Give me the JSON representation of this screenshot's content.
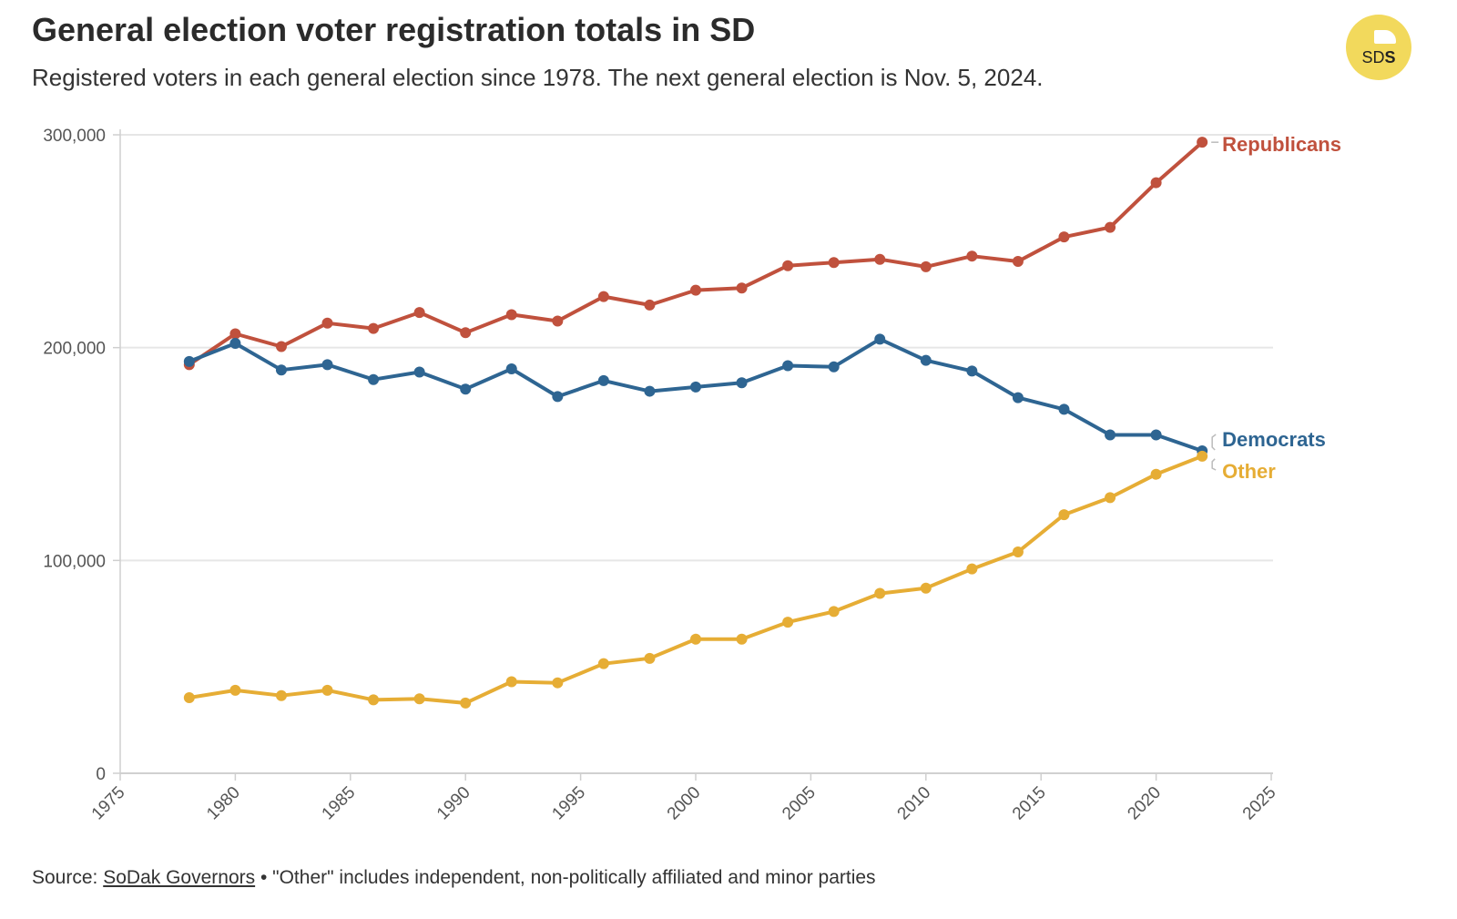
{
  "header": {
    "title": "General election voter registration totals in SD",
    "subtitle": "Registered voters in each general election since 1978. The next general election is Nov. 5, 2024."
  },
  "logo": {
    "prefix": "SD",
    "suffix": "S",
    "color": "#f2d95c"
  },
  "footer": {
    "source_prefix": "Source: ",
    "source_link": "SoDak Governors",
    "note": " • \"Other\" includes independent, non-politically affiliated and minor parties"
  },
  "chart_data": {
    "type": "line",
    "title": "General election voter registration totals in SD",
    "x_ticks": [
      1975,
      1980,
      1985,
      1990,
      1995,
      2000,
      2005,
      2010,
      2015,
      2020,
      2025
    ],
    "y_ticks": [
      0,
      100000,
      200000,
      300000
    ],
    "y_tick_labels": [
      "0",
      "100,000",
      "200,000",
      "300,000"
    ],
    "xlim": [
      1975,
      2025
    ],
    "ylim": [
      0,
      300000
    ],
    "grid": "horizontal",
    "x": [
      1978,
      1980,
      1982,
      1984,
      1986,
      1988,
      1990,
      1992,
      1994,
      1996,
      1998,
      2000,
      2002,
      2004,
      2006,
      2008,
      2010,
      2012,
      2014,
      2016,
      2018,
      2020,
      2022
    ],
    "series": [
      {
        "name": "Republicans",
        "color": "#c0513d",
        "values": [
          192000,
          206500,
          200500,
          211500,
          209000,
          216500,
          207000,
          215500,
          212500,
          224000,
          220000,
          227000,
          228000,
          238500,
          240000,
          241500,
          238000,
          243000,
          240500,
          252000,
          256500,
          277500,
          296500
        ]
      },
      {
        "name": "Democrats",
        "color": "#2e6592",
        "values": [
          193500,
          202000,
          189500,
          192000,
          185000,
          188500,
          180500,
          190000,
          177000,
          184500,
          179500,
          181500,
          183500,
          191500,
          191000,
          204000,
          194000,
          189000,
          176500,
          171000,
          159000,
          159000,
          151500
        ]
      },
      {
        "name": "Other",
        "color": "#e6ad35",
        "values": [
          35500,
          39000,
          36500,
          39000,
          34500,
          35000,
          33000,
          43000,
          42500,
          51500,
          54000,
          63000,
          63000,
          71000,
          76000,
          84500,
          87000,
          96000,
          104000,
          121500,
          129500,
          140500,
          149000
        ]
      }
    ]
  }
}
